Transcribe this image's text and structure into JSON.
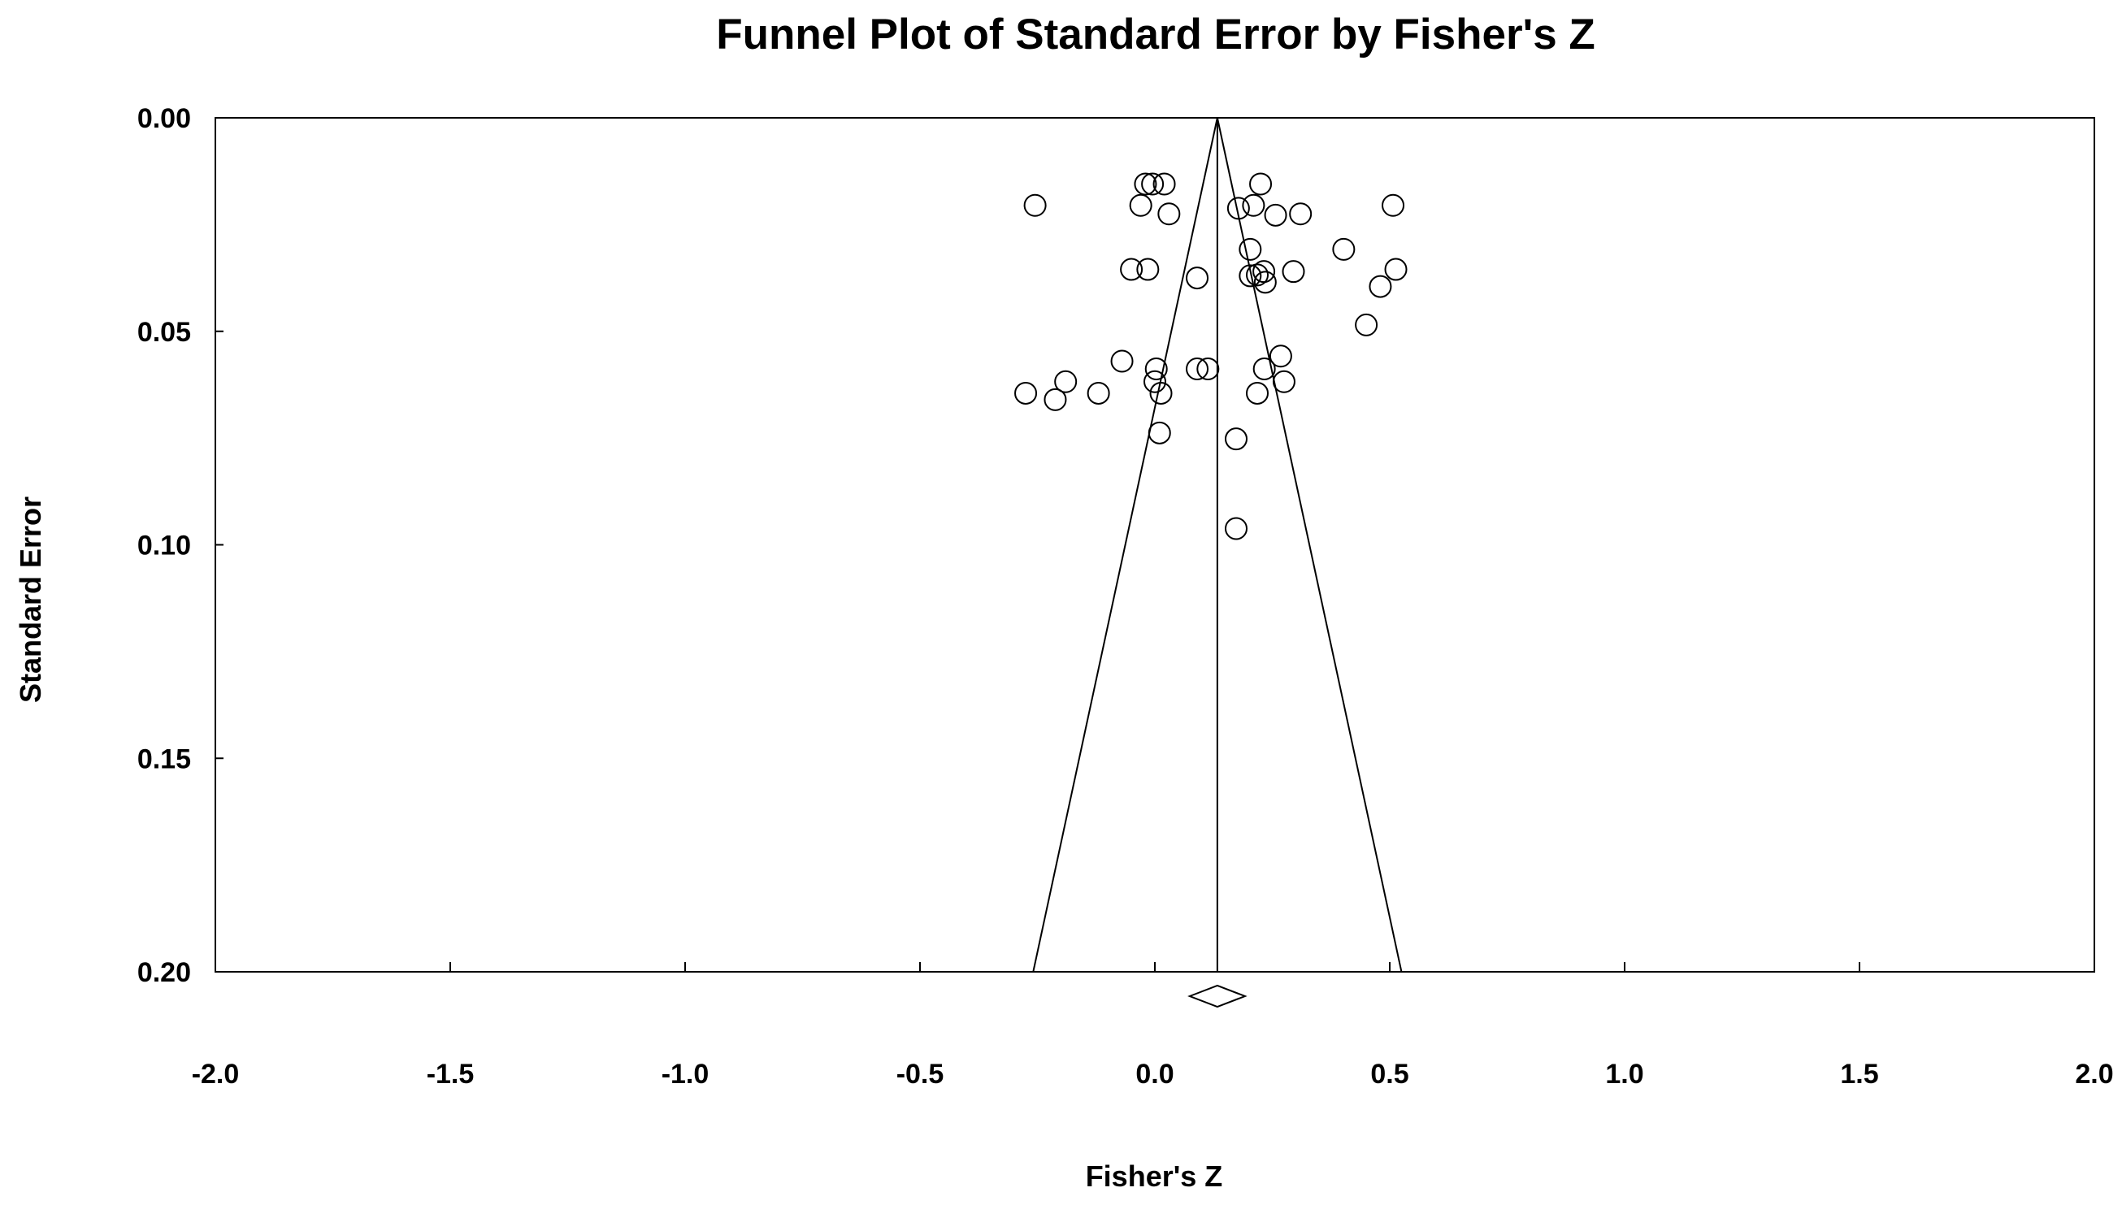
{
  "chart_data": {
    "type": "scatter",
    "title": "Funnel Plot of Standard Error by Fisher's Z",
    "xlabel": "Fisher's Z",
    "ylabel": "Standard Error",
    "xlim": [
      -2.0,
      2.0
    ],
    "ylim": [
      0.0,
      0.2
    ],
    "y_inverted": true,
    "x_ticks": [
      "-2.0",
      "-1.5",
      "-1.0",
      "-0.5",
      "0.0",
      "0.5",
      "1.0",
      "1.5",
      "2.0"
    ],
    "y_ticks": [
      "0.00",
      "0.05",
      "0.10",
      "0.15",
      "0.20"
    ],
    "grid": false,
    "legend": "none",
    "marker": "open-circle",
    "colors": {
      "ink": "#000000",
      "background": "#ffffff"
    },
    "summary_effect": 0.133,
    "funnel_bottom_x": [
      -0.259,
      0.525
    ],
    "points": [
      {
        "x": -0.255,
        "y": 0.0205
      },
      {
        "x": -0.02,
        "y": 0.0155
      },
      {
        "x": -0.005,
        "y": 0.0155
      },
      {
        "x": 0.02,
        "y": 0.0155
      },
      {
        "x": 0.225,
        "y": 0.0155
      },
      {
        "x": -0.03,
        "y": 0.0205
      },
      {
        "x": 0.03,
        "y": 0.0225
      },
      {
        "x": 0.178,
        "y": 0.0212
      },
      {
        "x": 0.21,
        "y": 0.0205
      },
      {
        "x": 0.257,
        "y": 0.0228
      },
      {
        "x": 0.31,
        "y": 0.0225
      },
      {
        "x": 0.507,
        "y": 0.0205
      },
      {
        "x": 0.203,
        "y": 0.0308
      },
      {
        "x": 0.402,
        "y": 0.0308
      },
      {
        "x": -0.05,
        "y": 0.0355
      },
      {
        "x": -0.015,
        "y": 0.0355
      },
      {
        "x": 0.09,
        "y": 0.0375
      },
      {
        "x": 0.203,
        "y": 0.037
      },
      {
        "x": 0.218,
        "y": 0.0368
      },
      {
        "x": 0.232,
        "y": 0.036
      },
      {
        "x": 0.235,
        "y": 0.0385
      },
      {
        "x": 0.295,
        "y": 0.036
      },
      {
        "x": 0.513,
        "y": 0.0355
      },
      {
        "x": 0.48,
        "y": 0.0395
      },
      {
        "x": 0.45,
        "y": 0.0485
      },
      {
        "x": -0.07,
        "y": 0.057
      },
      {
        "x": 0.003,
        "y": 0.0588
      },
      {
        "x": 0.09,
        "y": 0.0588
      },
      {
        "x": 0.113,
        "y": 0.0588
      },
      {
        "x": 0.268,
        "y": 0.0558
      },
      {
        "x": 0.233,
        "y": 0.0588
      },
      {
        "x": -0.19,
        "y": 0.0618
      },
      {
        "x": 0.0,
        "y": 0.0618
      },
      {
        "x": 0.275,
        "y": 0.0618
      },
      {
        "x": -0.275,
        "y": 0.0645
      },
      {
        "x": -0.12,
        "y": 0.0645
      },
      {
        "x": 0.013,
        "y": 0.0645
      },
      {
        "x": 0.218,
        "y": 0.0645
      },
      {
        "x": -0.212,
        "y": 0.066
      },
      {
        "x": 0.01,
        "y": 0.0738
      },
      {
        "x": 0.173,
        "y": 0.0752
      },
      {
        "x": 0.173,
        "y": 0.0962
      }
    ]
  }
}
